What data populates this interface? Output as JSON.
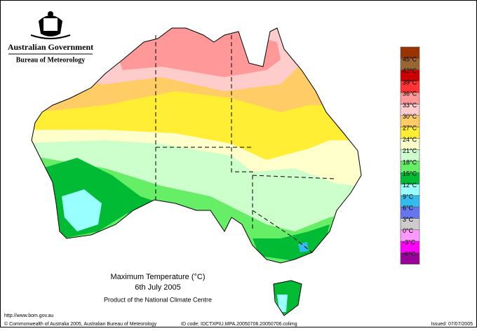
{
  "header": {
    "agency": "Australian Government",
    "bureau": "Bureau of Meteorology"
  },
  "map": {
    "title": "Maximum Temperature (°C)",
    "date": "6th July 2005",
    "product": "Product of the National Climate Centre"
  },
  "legend": {
    "colors": [
      "#993300",
      "#996633",
      "#cc0000",
      "#ff3333",
      "#ff9999",
      "#ffcccc",
      "#ffcc66",
      "#ffee33",
      "#ffffcc",
      "#ccffcc",
      "#66ee66",
      "#00bb33",
      "#99ffff",
      "#33bbee",
      "#6677ee",
      "#cccccc",
      "#ff99ff",
      "#ff00ff",
      "#990099"
    ],
    "labels": [
      "45°C",
      "42°C",
      "39°C",
      "36°C",
      "33°C",
      "30°C",
      "27°C",
      "24°C",
      "21°C",
      "18°C",
      "15°C",
      "12°C",
      "9°C",
      "6°C",
      "3°C",
      "0°C",
      "-3°C",
      "-6°C"
    ]
  },
  "footer": {
    "url": "http://www.bom.gov.au",
    "copyright": "© Commonwealth of Australia 2005, Australian Bureau of Meteorology",
    "id_code": "ID code: IDCTXPIU.MPA.20050706.20050706.colimg",
    "issued": "Issued: 07/07/2005"
  }
}
